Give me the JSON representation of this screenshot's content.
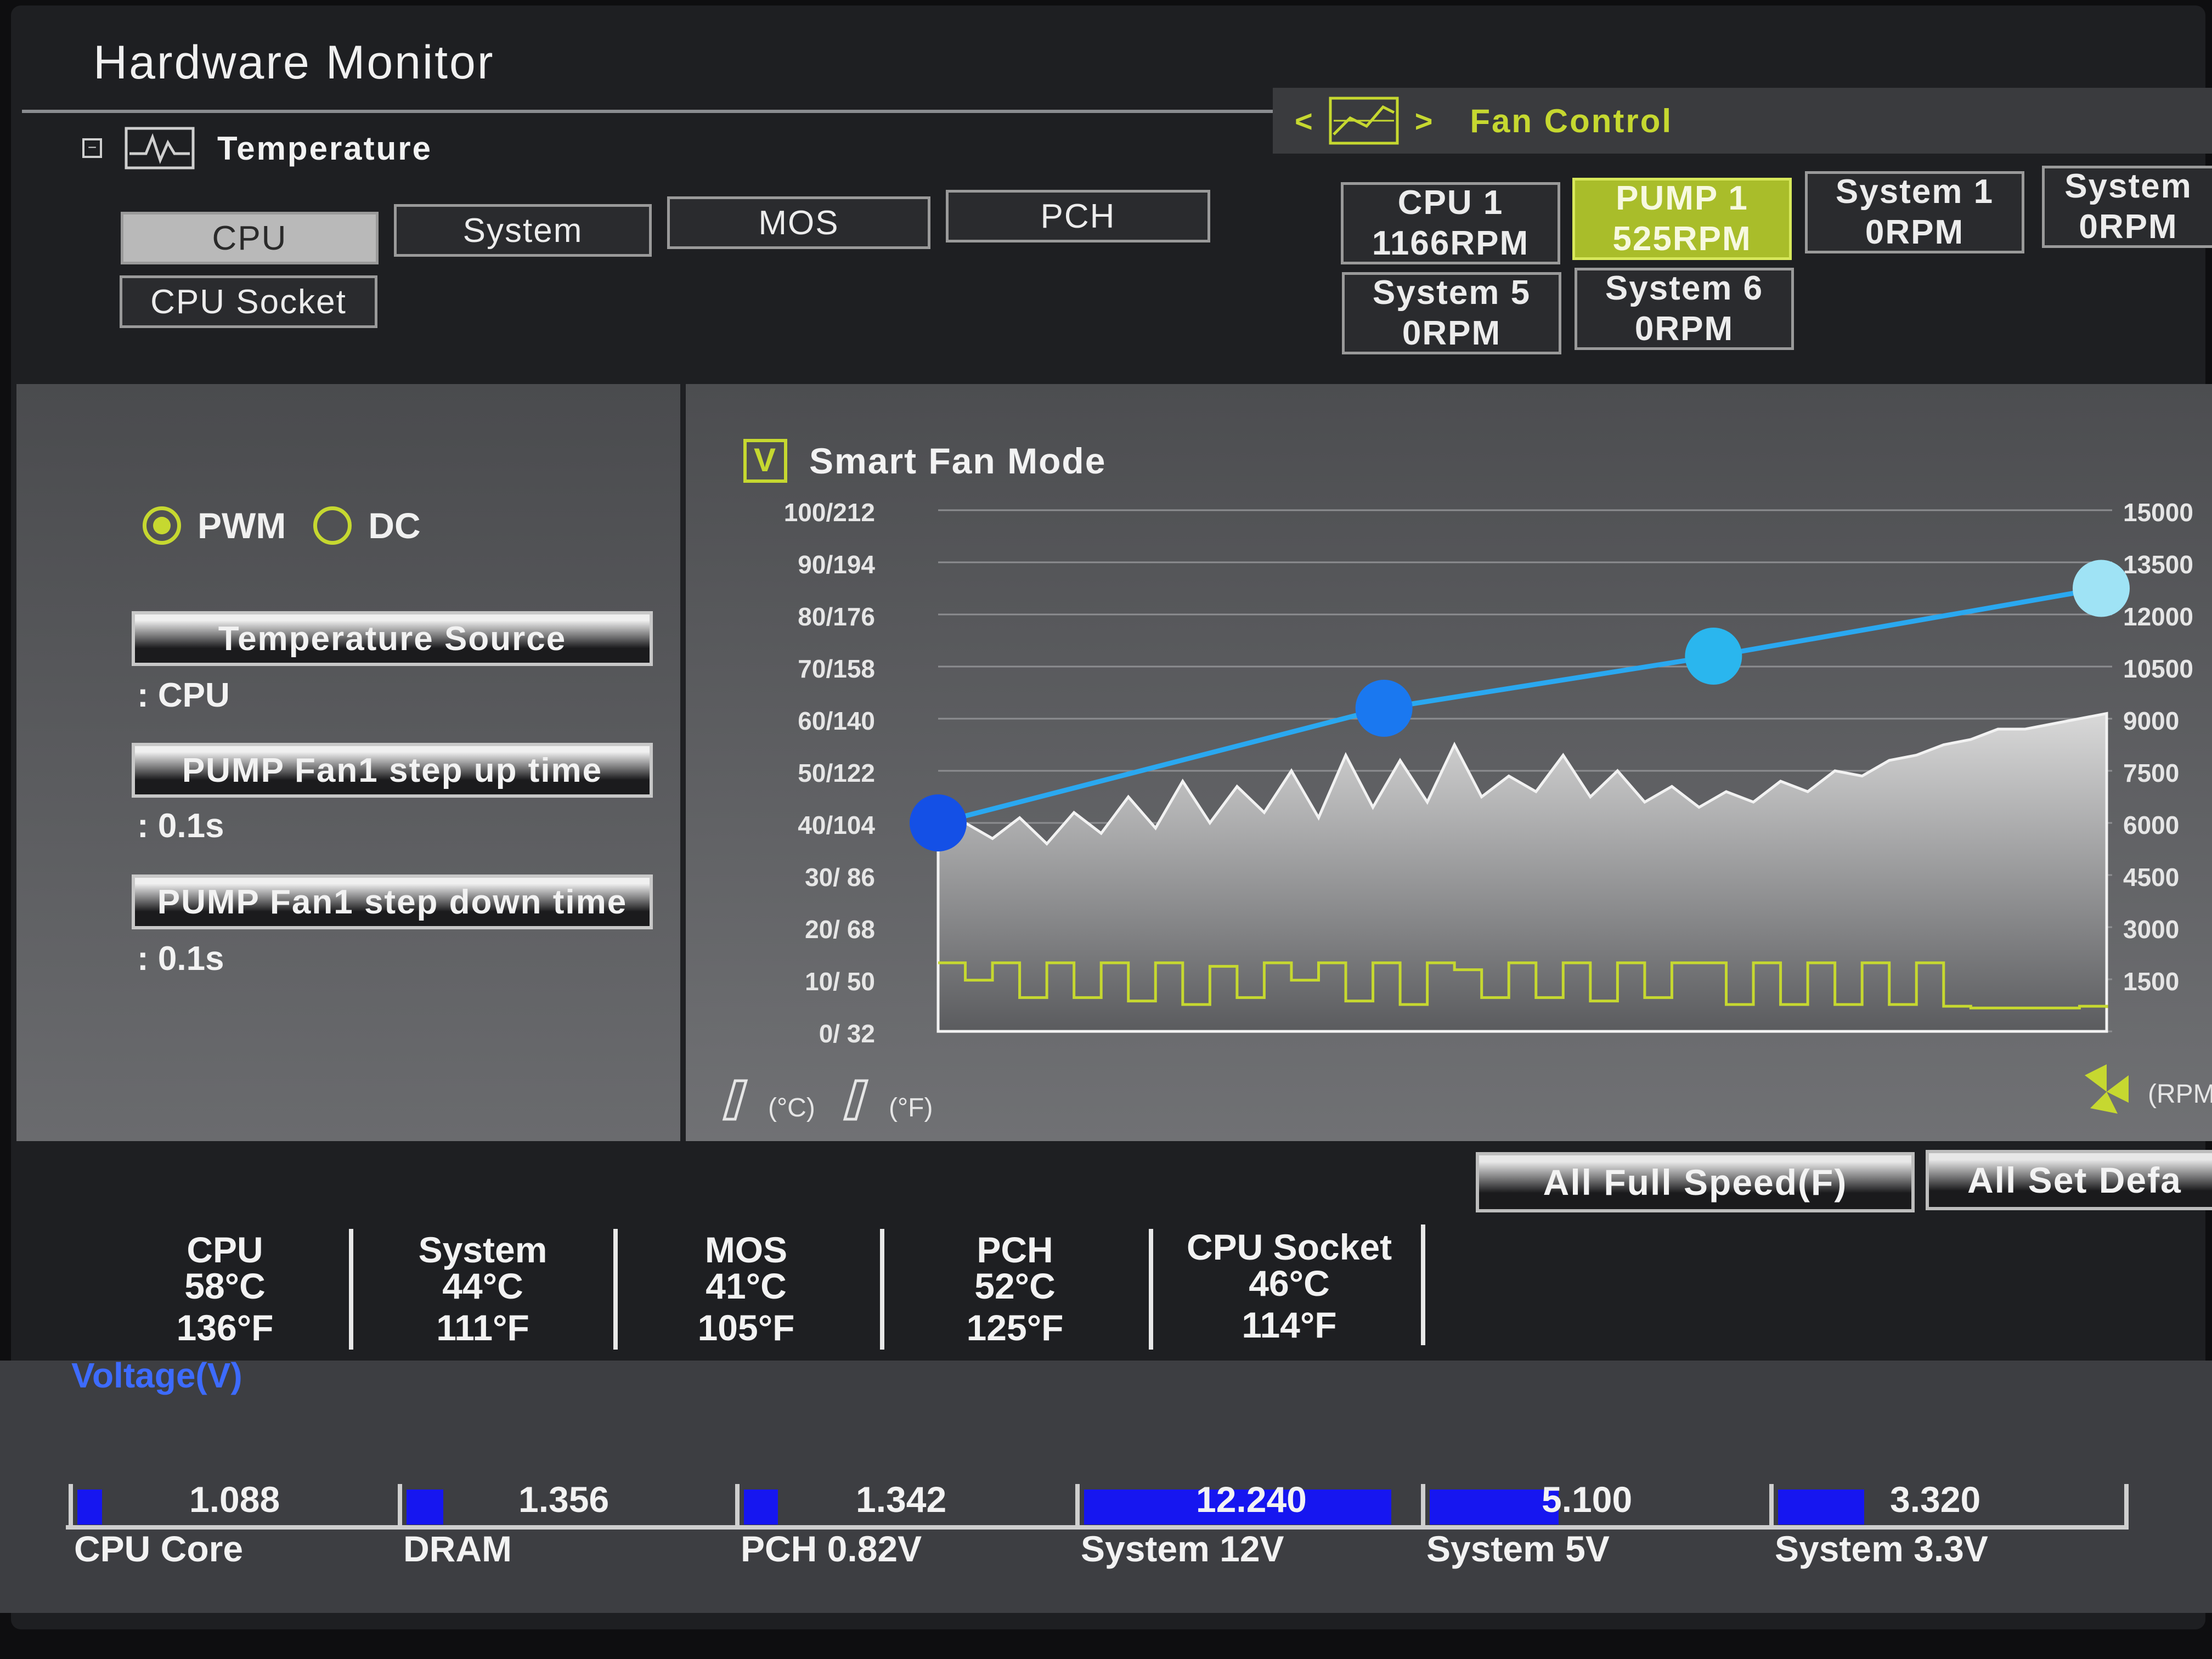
{
  "title": "Hardware Monitor",
  "temperature": {
    "label": "Temperature",
    "tabs": [
      {
        "label": "CPU",
        "active": true
      },
      {
        "label": "System",
        "active": false
      },
      {
        "label": "MOS",
        "active": false
      },
      {
        "label": "PCH",
        "active": false
      },
      {
        "label": "CPU Socket",
        "active": false
      }
    ]
  },
  "fan_control": {
    "label": "Fan Control",
    "prev_icon": "<",
    "next_icon": ">",
    "fans": [
      {
        "name": "CPU 1",
        "rpm": "1166RPM",
        "active": false
      },
      {
        "name": "PUMP 1",
        "rpm": "525RPM",
        "active": true
      },
      {
        "name": "System 1",
        "rpm": "0RPM",
        "active": false
      },
      {
        "name": "System",
        "rpm": "0RPM",
        "active": false
      },
      {
        "name": "System 5",
        "rpm": "0RPM",
        "active": false
      },
      {
        "name": "System 6",
        "rpm": "0RPM",
        "active": false
      }
    ]
  },
  "mode": {
    "pwm": "PWM",
    "dc": "DC",
    "selected": "PWM"
  },
  "options": [
    {
      "label": "Temperature Source",
      "value": ": CPU"
    },
    {
      "label": "PUMP Fan1 step up time",
      "value": ": 0.1s"
    },
    {
      "label": "PUMP Fan1 step down time",
      "value": ": 0.1s"
    }
  ],
  "smart_fan": {
    "label": "Smart Fan Mode",
    "checked": true,
    "check_mark": "V"
  },
  "chart_data": {
    "type": "line",
    "left_ticks": [
      "100/212",
      "90/194",
      "80/176",
      "70/158",
      "60/140",
      "50/122",
      "40/104",
      "30/ 86",
      "20/ 68",
      "10/ 50",
      "0/ 32"
    ],
    "right_ticks": [
      "15000",
      "13500",
      "12000",
      "10500",
      "9000",
      "7500",
      "6000",
      "4500",
      "3000",
      "1500"
    ],
    "celsius_label": "(°C)",
    "fahrenheit_label": "(°F)",
    "rpm_label": "(RPM)",
    "fan_curve": {
      "x_temp_c": [
        40,
        63,
        80,
        100
      ],
      "y_percent": [
        40,
        62,
        72,
        85
      ]
    },
    "temperature_history": [
      38,
      40,
      37,
      41,
      36,
      42,
      38,
      45,
      39,
      48,
      40,
      47,
      42,
      50,
      41,
      53,
      43,
      52,
      44,
      55,
      45,
      49,
      46,
      53,
      45,
      50,
      44,
      47,
      43,
      46,
      44,
      48,
      46,
      50,
      49,
      52,
      53,
      55,
      56,
      58,
      58,
      59,
      60,
      61
    ],
    "rpm_history": [
      1500,
      1000,
      1500,
      500,
      1500,
      500,
      1500,
      400,
      1500,
      300,
      1400,
      500,
      1500,
      1000,
      1500,
      400,
      1500,
      300,
      1500,
      1300,
      500,
      1500,
      500,
      1500,
      400,
      1500,
      500,
      1500,
      1500,
      300,
      1500,
      300,
      1500,
      300,
      1500,
      300,
      1500,
      250,
      200,
      200,
      200,
      200,
      250,
      200
    ]
  },
  "buttons": {
    "full_speed": "All Full Speed(F)",
    "set_default": "All Set Defa"
  },
  "sensors": [
    {
      "name": "CPU",
      "c": "58°C",
      "f": "136°F"
    },
    {
      "name": "System",
      "c": "44°C",
      "f": "111°F"
    },
    {
      "name": "MOS",
      "c": "41°C",
      "f": "105°F"
    },
    {
      "name": "PCH",
      "c": "52°C",
      "f": "125°F"
    },
    {
      "name": "CPU Socket",
      "c": "46°C",
      "f": "114°F"
    }
  ],
  "voltage": {
    "label": "Voltage(V)",
    "items": [
      {
        "name": "CPU Core",
        "value": "1.088",
        "level": 0.08
      },
      {
        "name": "DRAM",
        "value": "1.356",
        "level": 0.12
      },
      {
        "name": "PCH 0.82V",
        "value": "1.342",
        "level": 0.11
      },
      {
        "name": "System 12V",
        "value": "12.240",
        "level": 1.0
      },
      {
        "name": "System 5V",
        "value": "5.100",
        "level": 0.42
      },
      {
        "name": "System 3.3V",
        "value": "3.320",
        "level": 0.28
      }
    ]
  }
}
